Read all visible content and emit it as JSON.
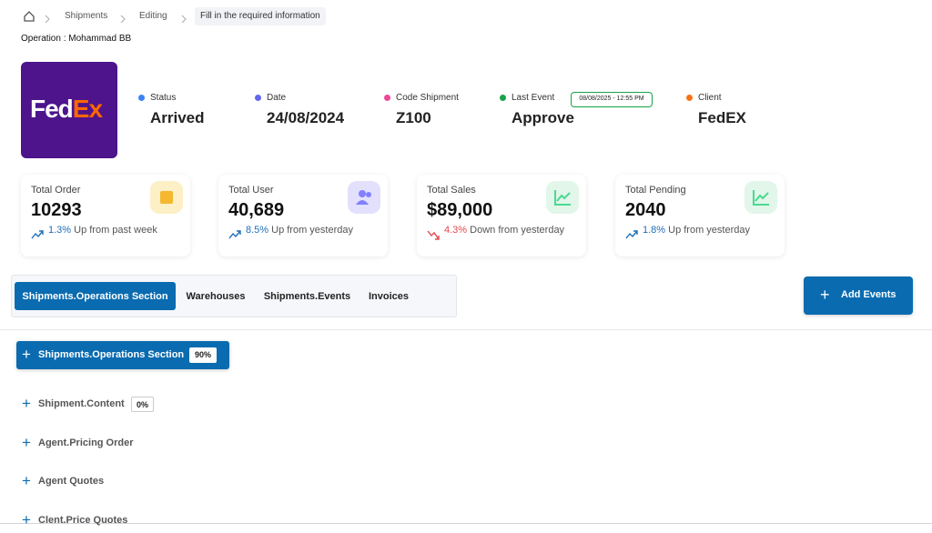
{
  "breadcrumb": [
    "Shipments",
    "Editing",
    "Fill in the required information"
  ],
  "operation": "Operation : Mohammad BB",
  "logo": {
    "parts": [
      "Fed",
      "Ex"
    ],
    "colors": [
      "#ffffff",
      "#ff6600"
    ],
    "background": "#4d148c"
  },
  "info": [
    {
      "label": "Status",
      "value": "Arrived",
      "color": "#3b82f6"
    },
    {
      "label": "Date",
      "value": "24/08/2024",
      "color": "#6366f1"
    },
    {
      "label": "Code Shipment",
      "value": "Z100",
      "color": "#ec4899"
    },
    {
      "label": "Last Event",
      "value": "Approve",
      "color": "#16a34a",
      "badge": "08/08/2025 - 12:55 PM"
    },
    {
      "label": "Client",
      "value": "FedEX",
      "color": "#f97316"
    }
  ],
  "stats": [
    {
      "title": "Total Order",
      "value": "10293",
      "change": "1.3%",
      "note": "Up from past week",
      "trend": "up",
      "icon_bg": "#fdefc6",
      "icon_color": "#f5b82e"
    },
    {
      "title": "Total User",
      "value": "40,689",
      "change": "8.5%",
      "note": "Up from yesterday",
      "trend": "up",
      "icon_bg": "#e2e0fb",
      "icon_color": "#8280ff"
    },
    {
      "title": "Total Sales",
      "value": "$89,000",
      "change": "4.3%",
      "note": "Down from yesterday",
      "trend": "down",
      "icon_bg": "#e2f6ea",
      "icon_color": "#4ad991"
    },
    {
      "title": "Total Pending",
      "value": "2040",
      "change": "1.8%",
      "note": "Up from yesterday",
      "trend": "up",
      "icon_bg": "#e2f6ea",
      "icon_color": "#4ad991"
    }
  ],
  "tabs": [
    "Shipments.Operations Section",
    "Warehouses",
    "Shipments.Events",
    "Invoices"
  ],
  "active_tab": 0,
  "add_button": "Add Events",
  "sections": [
    {
      "label": "Shipments.Operations Section",
      "badge": "90%",
      "active": true
    },
    {
      "label": "Shipment.Content",
      "badge": "0%",
      "active": false
    },
    {
      "label": "Agent.Pricing Order",
      "active": false
    },
    {
      "label": "Agent Quotes",
      "active": false
    },
    {
      "label": "Clent.Price Quotes",
      "active": false
    }
  ]
}
